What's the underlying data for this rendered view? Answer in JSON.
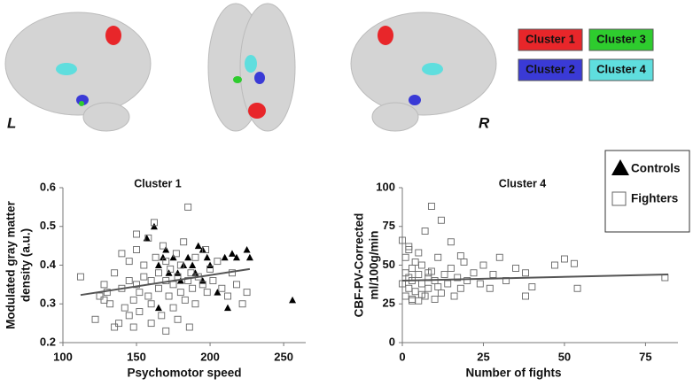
{
  "figure": {
    "side_labels": [
      "L",
      "R"
    ],
    "clusters": [
      {
        "name": "Cluster 1",
        "color": "#e8262a"
      },
      {
        "name": "Cluster 3",
        "color": "#2ecc2e"
      },
      {
        "name": "Cluster 2",
        "color": "#3a3ad6"
      },
      {
        "name": "Cluster 4",
        "color": "#5fdede"
      }
    ]
  },
  "chart_data": [
    {
      "type": "scatter",
      "title": "Cluster 1",
      "xlabel": "Psychomotor speed",
      "ylabel": [
        "Modulated gray matter",
        "density (a.u.)"
      ],
      "xlim": [
        100,
        265
      ],
      "ylim": [
        0.2,
        0.6
      ],
      "xticks": [
        100,
        150,
        200,
        250
      ],
      "yticks": [
        0.2,
        0.3,
        0.4,
        0.5,
        0.6
      ],
      "legend": "upper right",
      "series": [
        {
          "name": "Controls",
          "marker": "triangle",
          "color": "#000000",
          "x": [
            157,
            162,
            165,
            168,
            170,
            172,
            175,
            178,
            180,
            182,
            185,
            188,
            190,
            192,
            195,
            198,
            200,
            205,
            210,
            212,
            215,
            218,
            225,
            227,
            165,
            195,
            256
          ],
          "y": [
            0.47,
            0.5,
            0.4,
            0.42,
            0.44,
            0.38,
            0.42,
            0.38,
            0.36,
            0.4,
            0.42,
            0.4,
            0.38,
            0.45,
            0.44,
            0.42,
            0.4,
            0.33,
            0.42,
            0.29,
            0.43,
            0.42,
            0.44,
            0.42,
            0.29,
            0.36,
            0.31
          ]
        },
        {
          "name": "Fighters",
          "marker": "square",
          "color": "#666666",
          "x": [
            112,
            122,
            125,
            128,
            130,
            132,
            135,
            138,
            140,
            140,
            142,
            145,
            145,
            148,
            148,
            150,
            150,
            152,
            152,
            155,
            155,
            158,
            158,
            160,
            160,
            162,
            163,
            165,
            165,
            167,
            168,
            170,
            170,
            172,
            173,
            175,
            175,
            177,
            178,
            180,
            180,
            182,
            183,
            185,
            185,
            187,
            188,
            190,
            190,
            192,
            195,
            197,
            198,
            200,
            202,
            205,
            208,
            212,
            215,
            218,
            222,
            225,
            128,
            135,
            145,
            150,
            160,
            170,
            186,
            178
          ],
          "y": [
            0.37,
            0.26,
            0.32,
            0.35,
            0.33,
            0.3,
            0.38,
            0.25,
            0.43,
            0.34,
            0.29,
            0.36,
            0.41,
            0.31,
            0.24,
            0.44,
            0.35,
            0.33,
            0.28,
            0.37,
            0.4,
            0.32,
            0.47,
            0.36,
            0.3,
            0.51,
            0.42,
            0.34,
            0.38,
            0.27,
            0.45,
            0.36,
            0.41,
            0.32,
            0.39,
            0.35,
            0.29,
            0.43,
            0.37,
            0.33,
            0.4,
            0.46,
            0.31,
            0.36,
            0.55,
            0.38,
            0.34,
            0.42,
            0.3,
            0.37,
            0.35,
            0.44,
            0.33,
            0.39,
            0.36,
            0.41,
            0.34,
            0.32,
            0.38,
            0.35,
            0.3,
            0.33,
            0.31,
            0.24,
            0.27,
            0.48,
            0.25,
            0.23,
            0.24,
            0.26
          ]
        }
      ],
      "trend": {
        "color": "#555555",
        "x": [
          112,
          227
        ],
        "y": [
          0.323,
          0.39
        ]
      }
    },
    {
      "type": "scatter",
      "title": "Cluster 4",
      "xlabel": "Number of fights",
      "ylabel": [
        "CBF-PV-Corrected",
        "ml/100g/min"
      ],
      "xlim": [
        0,
        85
      ],
      "ylim": [
        0,
        100
      ],
      "xticks": [
        0,
        25,
        50,
        75
      ],
      "yticks": [
        0,
        25,
        50,
        75,
        100
      ],
      "series": [
        {
          "name": "Fighters",
          "marker": "square",
          "color": "#666666",
          "x": [
            0,
            0,
            1,
            1,
            1,
            2,
            2,
            2,
            3,
            3,
            3,
            4,
            4,
            5,
            5,
            5,
            6,
            6,
            7,
            7,
            8,
            8,
            9,
            9,
            10,
            10,
            11,
            12,
            12,
            13,
            14,
            15,
            16,
            17,
            18,
            18,
            19,
            20,
            22,
            24,
            25,
            27,
            28,
            30,
            32,
            35,
            38,
            40,
            47,
            50,
            53,
            54,
            81,
            2,
            6,
            11,
            3,
            8,
            15,
            38
          ],
          "y": [
            66,
            38,
            45,
            30,
            55,
            42,
            35,
            60,
            28,
            48,
            40,
            52,
            33,
            44,
            58,
            27,
            38,
            50,
            72,
            30,
            42,
            35,
            88,
            46,
            28,
            40,
            55,
            32,
            79,
            44,
            38,
            48,
            30,
            42,
            56,
            35,
            52,
            40,
            45,
            38,
            50,
            35,
            44,
            55,
            40,
            48,
            45,
            36,
            50,
            54,
            51,
            35,
            42,
            62,
            31,
            36,
            27,
            45,
            65,
            30
          ]
        }
      ],
      "trend": {
        "color": "#555555",
        "x": [
          0,
          82
        ],
        "y": [
          40,
          44
        ]
      }
    }
  ]
}
